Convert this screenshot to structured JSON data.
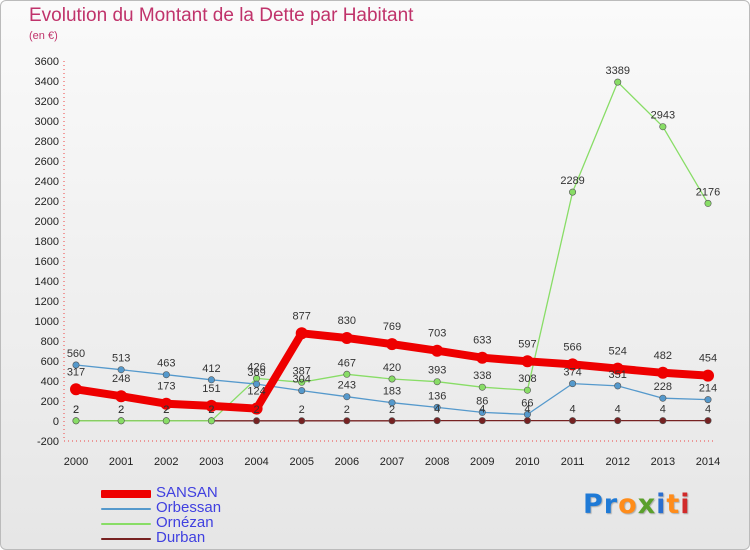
{
  "title": "Evolution du Montant de la Dette par Habitant",
  "subtitle": "(en €)",
  "logo": {
    "text": "Proxiti",
    "colors": [
      "#1f7ad6",
      "#1f7ad6",
      "#ff8c1a",
      "#5aa02c",
      "#2a6ecf",
      "#ff8c1a",
      "#d12a2a"
    ]
  },
  "chart_data": {
    "type": "line",
    "title": "Evolution du Montant de la Dette par Habitant",
    "subtitle": "(en €)",
    "xlabel": "",
    "ylabel": "",
    "x": [
      "2000",
      "2001",
      "2002",
      "2003",
      "2004",
      "2005",
      "2006",
      "2007",
      "2008",
      "2009",
      "2010",
      "2011",
      "2012",
      "2013",
      "2014"
    ],
    "ylim": [
      -200,
      3600
    ],
    "yticks": [
      -200,
      0,
      200,
      400,
      600,
      800,
      1000,
      1200,
      1400,
      1600,
      1800,
      2000,
      2200,
      2400,
      2600,
      2800,
      3000,
      3200,
      3400,
      3600
    ],
    "grid": false,
    "legend_position": "bottom-left",
    "series": [
      {
        "name": "SANSAN",
        "color": "#ee0000",
        "width": 8,
        "values": [
          317,
          248,
          173,
          151,
          124,
          877,
          830,
          769,
          703,
          633,
          597,
          566,
          524,
          482,
          454
        ],
        "labels": [
          "317",
          "248",
          "173",
          "151",
          "124",
          "877",
          "830",
          "769",
          "703",
          "633",
          "597",
          "566",
          "524",
          "482",
          "454"
        ]
      },
      {
        "name": "Orbessan",
        "color": "#5599cc",
        "width": 1.3,
        "values": [
          560,
          513,
          463,
          412,
          369,
          304,
          243,
          183,
          136,
          86,
          66,
          374,
          351,
          228,
          214
        ],
        "labels": [
          "560",
          "513",
          "463",
          "412",
          "369",
          "304",
          "243",
          "183",
          "136",
          "86",
          "66",
          "374",
          "351",
          "228",
          "214"
        ]
      },
      {
        "name": "Ornézan",
        "color": "#88dd66",
        "width": 1.3,
        "values": [
          2,
          2,
          2,
          2,
          426,
          387,
          467,
          420,
          393,
          338,
          308,
          2289,
          3389,
          2943,
          2176
        ],
        "labels": [
          "2",
          "2",
          "2",
          "2",
          "426",
          "387",
          "467",
          "420",
          "393",
          "338",
          "308",
          "2289",
          "3389",
          "2943",
          "2176"
        ]
      },
      {
        "name": "Durban",
        "color": "#772222",
        "width": 1.3,
        "values": [
          2,
          2,
          2,
          2,
          2,
          2,
          2,
          2,
          4,
          4,
          4,
          4,
          4,
          4,
          4
        ],
        "labels": [
          "2",
          "2",
          "2",
          "2",
          "2",
          "2",
          "2",
          "2",
          "4",
          "4",
          "4",
          "4",
          "4",
          "4",
          "4"
        ]
      }
    ]
  }
}
